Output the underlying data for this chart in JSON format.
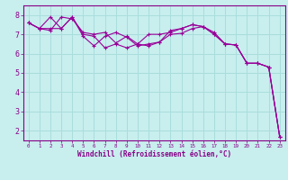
{
  "xlabel": "Windchill (Refroidissement éolien,°C)",
  "ylabel": "",
  "background_color": "#c8eeee",
  "grid_color": "#aadddd",
  "line_color": "#990099",
  "text_color": "#880088",
  "xlim": [
    -0.5,
    23.5
  ],
  "ylim": [
    1.5,
    8.5
  ],
  "xticks": [
    0,
    1,
    2,
    3,
    4,
    5,
    6,
    7,
    8,
    9,
    10,
    11,
    12,
    13,
    14,
    15,
    16,
    17,
    18,
    19,
    20,
    21,
    22,
    23
  ],
  "yticks": [
    2,
    3,
    4,
    5,
    6,
    7,
    8
  ],
  "line1_x": [
    0,
    1,
    2,
    3,
    4,
    5,
    6,
    7,
    8,
    9,
    10,
    11,
    12,
    13,
    14,
    15,
    16,
    17,
    18,
    19,
    20,
    21,
    22,
    23
  ],
  "line1_y": [
    7.6,
    7.3,
    7.3,
    7.3,
    7.9,
    7.0,
    6.9,
    6.3,
    6.5,
    6.3,
    6.5,
    6.4,
    6.6,
    7.0,
    7.05,
    7.3,
    7.4,
    7.1,
    6.5,
    6.45,
    5.5,
    5.5,
    5.3,
    1.7
  ],
  "line2_x": [
    0,
    1,
    2,
    3,
    4,
    5,
    6,
    7,
    8,
    9,
    10,
    11,
    12,
    13,
    14,
    15,
    16,
    17,
    18,
    19,
    20,
    21,
    22,
    23
  ],
  "line2_y": [
    7.6,
    7.3,
    7.2,
    7.9,
    7.8,
    7.1,
    7.0,
    7.1,
    6.55,
    6.9,
    6.5,
    7.0,
    7.0,
    7.1,
    7.3,
    7.5,
    7.4,
    7.0,
    6.5,
    6.45,
    5.5,
    5.5,
    5.3,
    1.7
  ],
  "line3_x": [
    0,
    1,
    2,
    3,
    4,
    5,
    6,
    7,
    8,
    9,
    10,
    11,
    12,
    13,
    14,
    15,
    16,
    17,
    18,
    19,
    20,
    21,
    22,
    23
  ],
  "line3_y": [
    7.6,
    7.3,
    7.9,
    7.3,
    7.9,
    6.9,
    6.4,
    6.9,
    7.1,
    6.85,
    6.4,
    6.5,
    6.6,
    7.2,
    7.3,
    7.5,
    7.4,
    7.0,
    6.5,
    6.45,
    5.5,
    5.5,
    5.3,
    1.7
  ]
}
